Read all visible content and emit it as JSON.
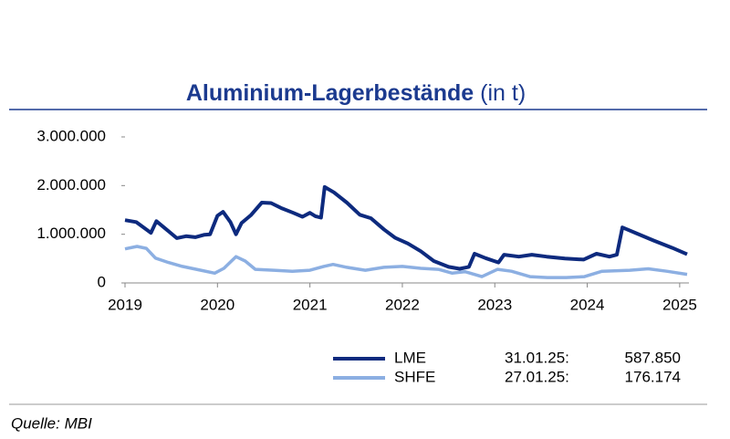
{
  "chart_data": {
    "type": "line",
    "title": "Aluminium-Lagerbestände",
    "unit": "(in t)",
    "source": "Quelle: MBI",
    "xlim": [
      2019,
      2025.1
    ],
    "xticks": [
      2019,
      2020,
      2021,
      2022,
      2023,
      2024,
      2025
    ],
    "ylim": [
      0,
      3000000
    ],
    "yticks": [
      0,
      {
        "value": 1000000,
        "label": "1.000.000"
      },
      {
        "value": 2000000,
        "label": "2.000.000"
      },
      {
        "value": 3000000,
        "label": "3.000.000"
      }
    ],
    "grid": false,
    "series": [
      {
        "name": "LME",
        "color": "#0d2a7e",
        "last_date": "31.01.25:",
        "last_value": {
          "value": 587850,
          "label": "587.850"
        },
        "x": [
          2019.0,
          2019.12,
          2019.28,
          2019.34,
          2019.46,
          2019.56,
          2019.66,
          2019.76,
          2019.86,
          2019.92,
          2020.0,
          2020.06,
          2020.14,
          2020.2,
          2020.26,
          2020.36,
          2020.48,
          2020.58,
          2020.7,
          2020.82,
          2020.92,
          2021.0,
          2021.06,
          2021.12,
          2021.16,
          2021.26,
          2021.4,
          2021.54,
          2021.66,
          2021.8,
          2021.92,
          2022.06,
          2022.2,
          2022.34,
          2022.5,
          2022.62,
          2022.72,
          2022.78,
          2022.9,
          2023.04,
          2023.1,
          2023.26,
          2023.4,
          2023.56,
          2023.76,
          2023.96,
          2024.1,
          2024.24,
          2024.32,
          2024.38,
          2024.52,
          2024.72,
          2024.92,
          2025.08
        ],
        "values": [
          1290000,
          1250000,
          1030000,
          1270000,
          1080000,
          920000,
          960000,
          940000,
          990000,
          1000000,
          1380000,
          1460000,
          1250000,
          1000000,
          1230000,
          1390000,
          1650000,
          1640000,
          1530000,
          1440000,
          1360000,
          1440000,
          1370000,
          1340000,
          1970000,
          1860000,
          1650000,
          1400000,
          1330000,
          1100000,
          930000,
          810000,
          650000,
          450000,
          330000,
          290000,
          330000,
          600000,
          510000,
          420000,
          580000,
          540000,
          580000,
          540000,
          500000,
          480000,
          600000,
          540000,
          580000,
          1140000,
          1030000,
          870000,
          720000,
          587850
        ]
      },
      {
        "name": "SHFE",
        "color": "#8cafe2",
        "last_date": "27.01.25:",
        "last_value": {
          "value": 176174,
          "label": "176.174"
        },
        "x": [
          2019.0,
          2019.13,
          2019.23,
          2019.33,
          2019.47,
          2019.62,
          2019.82,
          2019.97,
          2020.07,
          2020.2,
          2020.3,
          2020.41,
          2020.61,
          2020.81,
          2021.0,
          2021.15,
          2021.25,
          2021.4,
          2021.6,
          2021.8,
          2022.0,
          2022.2,
          2022.39,
          2022.54,
          2022.68,
          2022.86,
          2023.03,
          2023.18,
          2023.38,
          2023.57,
          2023.77,
          2023.97,
          2024.16,
          2024.46,
          2024.66,
          2024.86,
          2025.08
        ],
        "values": [
          700000,
          750000,
          710000,
          510000,
          420000,
          340000,
          260000,
          200000,
          300000,
          540000,
          450000,
          280000,
          260000,
          240000,
          260000,
          340000,
          380000,
          320000,
          260000,
          320000,
          340000,
          300000,
          280000,
          200000,
          230000,
          130000,
          280000,
          240000,
          130000,
          110000,
          110000,
          130000,
          240000,
          260000,
          290000,
          240000,
          176174
        ]
      }
    ]
  }
}
